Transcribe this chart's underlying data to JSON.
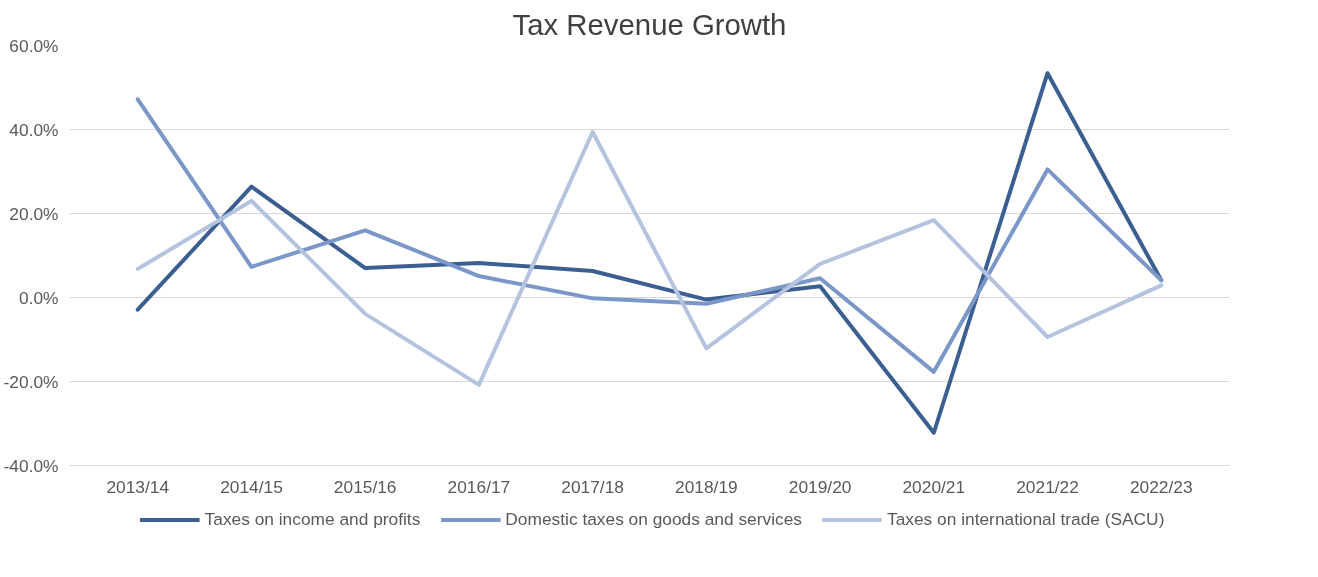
{
  "chart_data": {
    "type": "line",
    "title": "Tax Revenue Growth",
    "categories": [
      "2013/14",
      "2014/15",
      "2015/16",
      "2016/17",
      "2017/18",
      "2018/19",
      "2019/20",
      "2020/21",
      "2021/22",
      "2022/23"
    ],
    "series": [
      {
        "name": "Taxes on income and profits",
        "color": "#3b5f91",
        "values": [
          -2.9,
          26.4,
          7.0,
          8.2,
          6.3,
          -0.5,
          2.7,
          -32.2,
          53.4,
          4.1
        ]
      },
      {
        "name": "Domestic taxes on goods and services",
        "color": "#7a97c8",
        "values": [
          47.2,
          7.3,
          16.0,
          5.1,
          -0.2,
          -1.5,
          4.6,
          -17.7,
          30.5,
          4.1
        ]
      },
      {
        "name": "Taxes on international trade (SACU)",
        "color": "#b4c3de",
        "values": [
          6.8,
          23.0,
          -3.9,
          -20.8,
          39.4,
          -12.1,
          8.0,
          18.4,
          -9.4,
          2.9
        ]
      }
    ],
    "ylim": [
      -40,
      60
    ],
    "yticks": [
      {
        "value": -40,
        "label": "-40.0%"
      },
      {
        "value": -20,
        "label": "-20.0%"
      },
      {
        "value": 0,
        "label": "0.0%"
      },
      {
        "value": 20,
        "label": "20.0%"
      },
      {
        "value": 40,
        "label": "40.0%"
      },
      {
        "value": 60,
        "label": "60.0%"
      }
    ],
    "grid": "y",
    "legend": "bottom",
    "marker": "none",
    "line_style": "solid"
  }
}
